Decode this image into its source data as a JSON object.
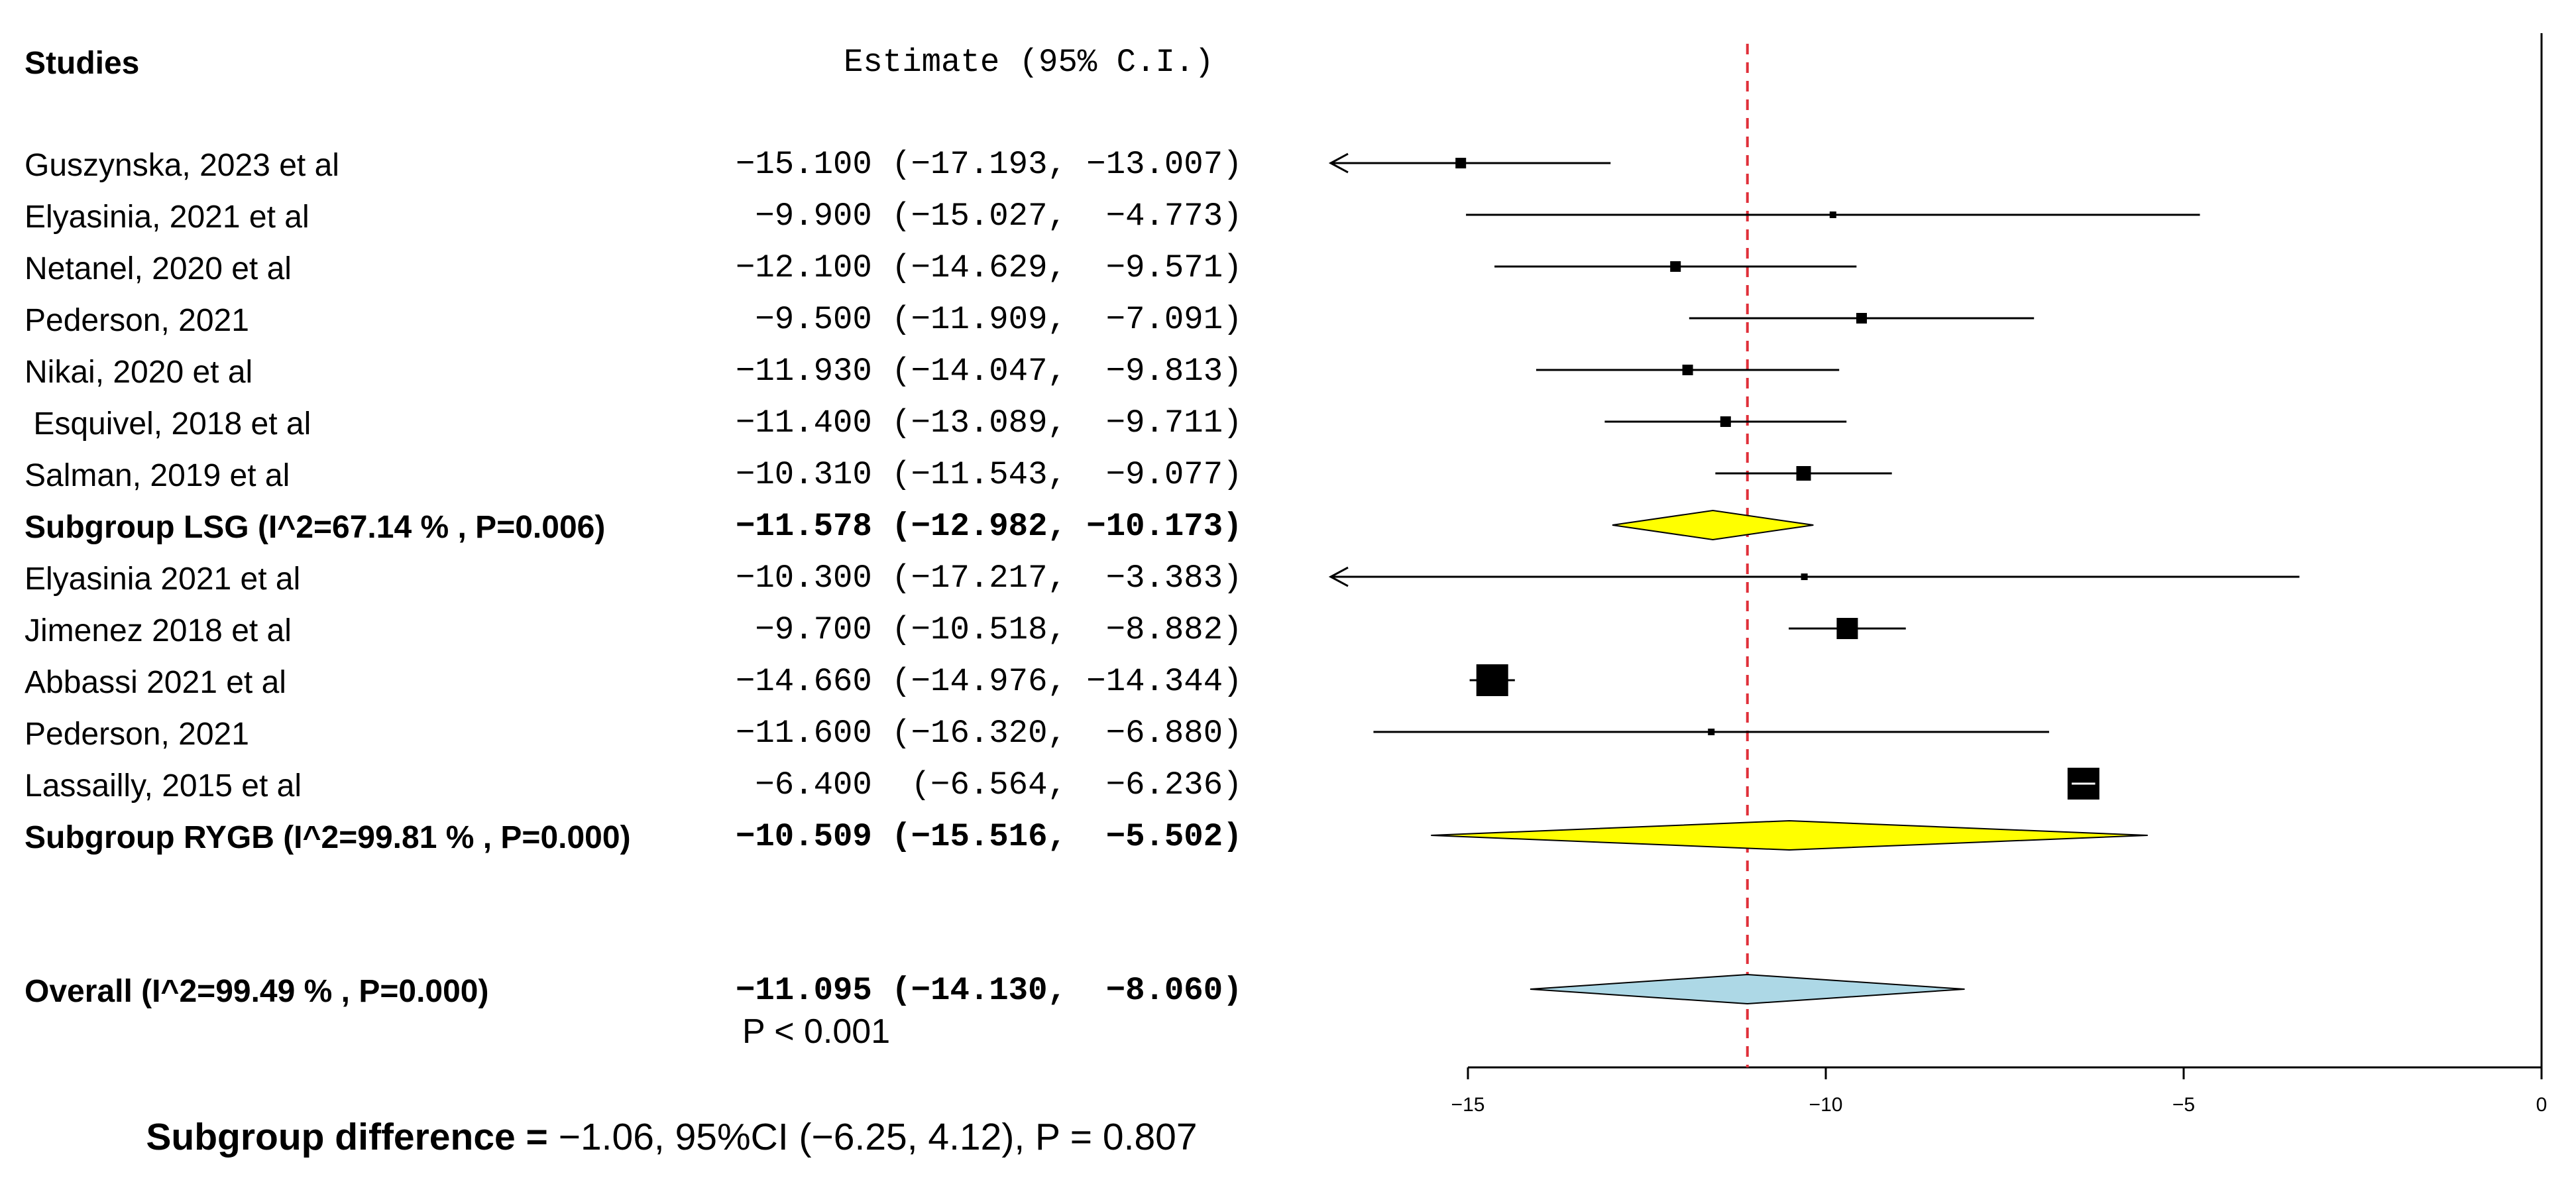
{
  "header": {
    "studies": "Studies",
    "estimate": "Estimate (95% C.I.)"
  },
  "rows": [
    {
      "label": "Guszynska, 2023 et al",
      "estimate_text": "-15.100 (-17.193, -13.007)",
      "bold": false
    },
    {
      "label": "Elyasinia, 2021 et al",
      "estimate_text": " -9.900 (-15.027,  -4.773)",
      "bold": false
    },
    {
      "label": "Netanel, 2020 et al",
      "estimate_text": "-12.100 (-14.629,  -9.571)",
      "bold": false
    },
    {
      "label": "Pederson, 2021",
      "estimate_text": " -9.500 (-11.909,  -7.091)",
      "bold": false
    },
    {
      "label": "Nikai, 2020 et al",
      "estimate_text": "-11.930 (-14.047,  -9.813)",
      "bold": false
    },
    {
      "label": " Esquivel, 2018 et al",
      "estimate_text": "-11.400 (-13.089,  -9.711)",
      "bold": false
    },
    {
      "label": "Salman, 2019 et al",
      "estimate_text": "-10.310 (-11.543,  -9.077)",
      "bold": false
    },
    {
      "label": "Subgroup LSG (I^2=67.14 % , P=0.006)",
      "estimate_text": "-11.578 (-12.982, -10.173)",
      "bold": true
    },
    {
      "label": "Elyasinia 2021 et al",
      "estimate_text": "-10.300 (-17.217,  -3.383)",
      "bold": false
    },
    {
      "label": "Jimenez 2018 et al",
      "estimate_text": " -9.700 (-10.518,  -8.882)",
      "bold": false
    },
    {
      "label": "Abbassi 2021 et al",
      "estimate_text": "-14.660 (-14.976, -14.344)",
      "bold": false
    },
    {
      "label": "Pederson, 2021",
      "estimate_text": "-11.600 (-16.320,  -6.880)",
      "bold": false
    },
    {
      "label": "Lassailly, 2015 et al",
      "estimate_text": " -6.400  (-6.564,  -6.236)",
      "bold": false
    },
    {
      "label": "Subgroup RYGB (I^2=99.81 % , P=0.000)",
      "estimate_text": "-10.509 (-15.516,  -5.502)",
      "bold": true
    },
    {
      "label": "Overall (I^2=99.49 % , P=0.000)",
      "estimate_text": "-11.095 (-14.130,  -8.060)",
      "bold": true
    }
  ],
  "p_value": "P < 0.001",
  "subgroup_difference": {
    "label": "Subgroup difference =",
    "value": " -1.06, 95%CI (-6.25, 4.12), P = 0.807"
  },
  "colors": {
    "subgroup_diamond": "#ffff00",
    "overall_diamond": "#add8e6",
    "reference_line": "#e0303a"
  },
  "chart_data": {
    "type": "forest",
    "xlim": [
      -15,
      0
    ],
    "x_ticks": [
      -15,
      -10,
      -5,
      0
    ],
    "tick_labels": [
      "-15",
      "-10",
      "-5",
      "0"
    ],
    "reference_line": -11.095,
    "studies": [
      {
        "name": "Guszynska, 2023 et al",
        "estimate": -15.1,
        "lower": -17.193,
        "upper": -13.007,
        "weight_level": 1,
        "slot": 0
      },
      {
        "name": "Elyasinia, 2021 et al",
        "estimate": -9.9,
        "lower": -15.027,
        "upper": -4.773,
        "weight_level": 0,
        "slot": 1
      },
      {
        "name": "Netanel, 2020 et al",
        "estimate": -12.1,
        "lower": -14.629,
        "upper": -9.571,
        "weight_level": 1,
        "slot": 2
      },
      {
        "name": "Pederson, 2021",
        "estimate": -9.5,
        "lower": -11.909,
        "upper": -7.091,
        "weight_level": 1,
        "slot": 3
      },
      {
        "name": "Nikai, 2020 et al",
        "estimate": -11.93,
        "lower": -14.047,
        "upper": -9.813,
        "weight_level": 1,
        "slot": 4
      },
      {
        "name": "Esquivel, 2018 et al",
        "estimate": -11.4,
        "lower": -13.089,
        "upper": -9.711,
        "weight_level": 1,
        "slot": 5
      },
      {
        "name": "Salman, 2019 et al",
        "estimate": -10.31,
        "lower": -11.543,
        "upper": -9.077,
        "weight_level": 2,
        "slot": 6
      },
      {
        "name": "Elyasinia 2021 et al",
        "estimate": -10.3,
        "lower": -17.217,
        "upper": -3.383,
        "weight_level": 0,
        "slot": 8
      },
      {
        "name": "Jimenez 2018 et al",
        "estimate": -9.7,
        "lower": -10.518,
        "upper": -8.882,
        "weight_level": 3,
        "slot": 9
      },
      {
        "name": "Abbassi 2021 et al",
        "estimate": -14.66,
        "lower": -14.976,
        "upper": -14.344,
        "weight_level": 4,
        "slot": 10
      },
      {
        "name": "Pederson, 2021",
        "estimate": -11.6,
        "lower": -16.32,
        "upper": -6.88,
        "weight_level": 0,
        "slot": 11
      },
      {
        "name": "Lassailly, 2015 et al",
        "estimate": -6.4,
        "lower": -6.564,
        "upper": -6.236,
        "weight_level": 4,
        "slot": 12
      }
    ],
    "subgroups": [
      {
        "name": "Subgroup LSG",
        "estimate": -11.578,
        "lower": -12.982,
        "upper": -10.173,
        "slot": 7,
        "color": "#ffff00"
      },
      {
        "name": "Subgroup RYGB",
        "estimate": -10.509,
        "lower": -15.516,
        "upper": -5.502,
        "slot": 13,
        "color": "#ffff00"
      }
    ],
    "overall": {
      "name": "Overall",
      "estimate": -11.095,
      "lower": -14.13,
      "upper": -8.06,
      "slot": 14,
      "color": "#add8e6"
    }
  }
}
